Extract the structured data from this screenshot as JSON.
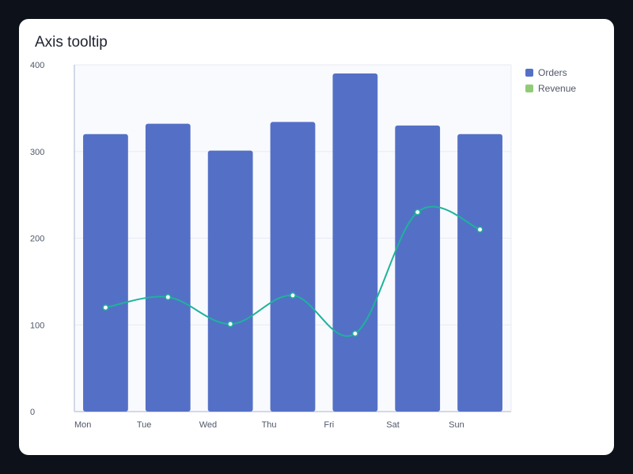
{
  "title": "Axis tooltip",
  "colors": {
    "orders": "#5470c6",
    "revenue_line": "#1db39c",
    "revenue_legend": "#91cc75",
    "plot_bg": "#f9fafd",
    "grid": "#e8ebf3",
    "axis": "#c5cce0"
  },
  "legend": [
    {
      "label": "Orders",
      "color": "#5470c6"
    },
    {
      "label": "Revenue",
      "color": "#91cc75"
    }
  ],
  "chart_data": {
    "type": "bar",
    "categories": [
      "Mon",
      "Tue",
      "Wed",
      "Thu",
      "Fri",
      "Sat",
      "Sun"
    ],
    "series": [
      {
        "name": "Orders",
        "type": "bar",
        "values": [
          320,
          332,
          301,
          334,
          390,
          330,
          320
        ]
      },
      {
        "name": "Revenue",
        "type": "line",
        "smooth": true,
        "values": [
          120,
          132,
          101,
          134,
          90,
          230,
          210
        ]
      }
    ],
    "yticks": [
      0,
      100,
      200,
      300,
      400
    ],
    "ylim": [
      0,
      400
    ],
    "grid": true,
    "legend_position": "right"
  }
}
